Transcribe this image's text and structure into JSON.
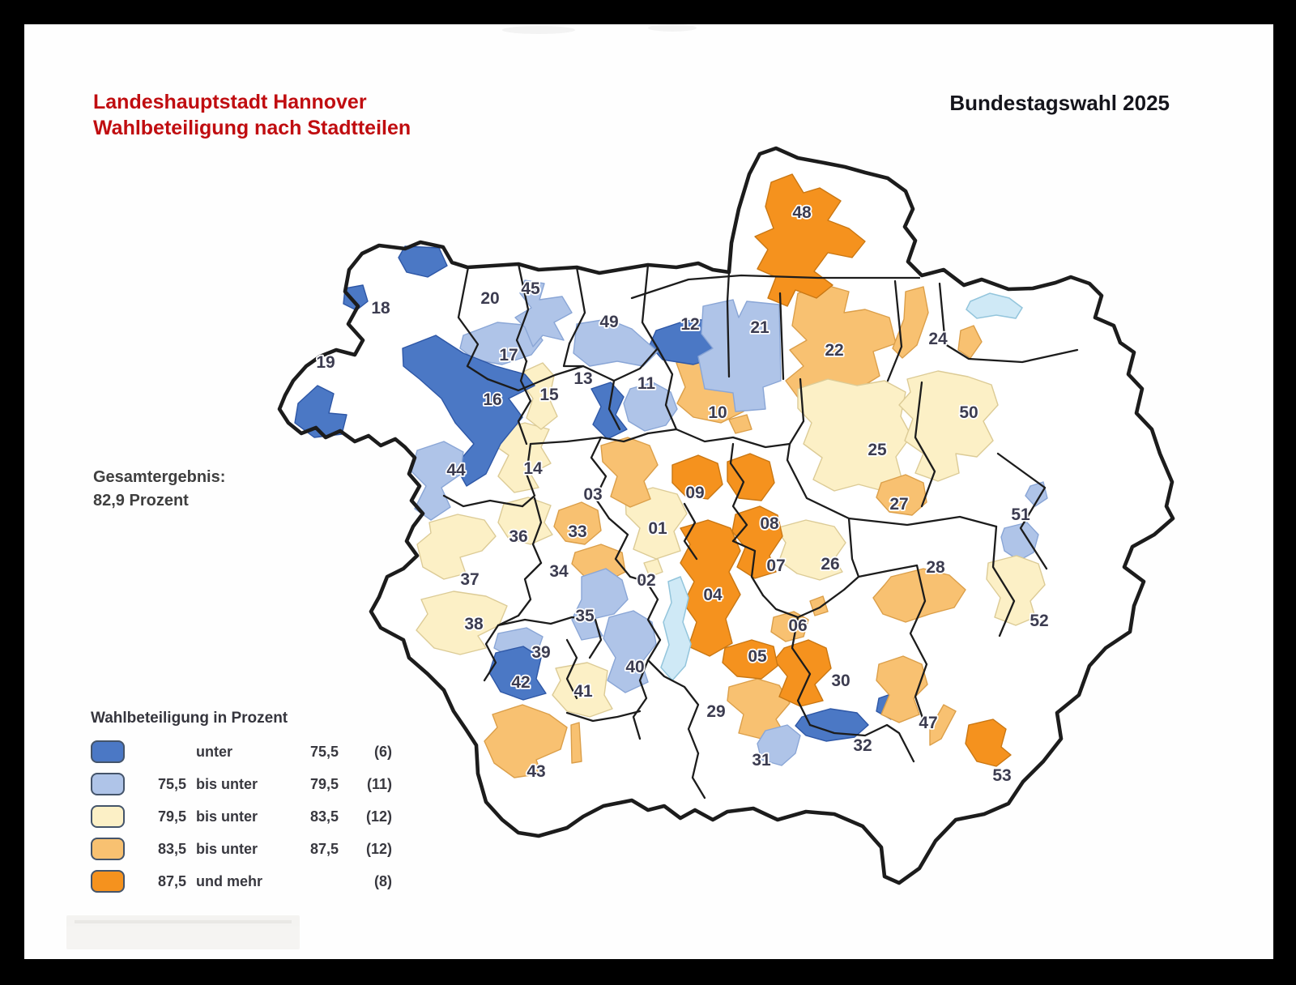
{
  "header": {
    "title_line1": "Landeshauptstadt Hannover",
    "title_line2": "Wahlbeteiligung nach Stadtteilen",
    "title_color": "#c00d10",
    "right_title": "Bundestagswahl 2025",
    "right_title_color": "#15151c"
  },
  "summary": {
    "label": "Gesamtergebnis:",
    "value": "82,9 Prozent"
  },
  "legend": {
    "title": "Wahlbeteiligung in Prozent",
    "classes": [
      {
        "id": "c1",
        "color": "#4b78c5",
        "from": "",
        "mid": "unter",
        "to": "75,5",
        "count": "(6)"
      },
      {
        "id": "c2",
        "color": "#afc4e8",
        "from": "75,5",
        "mid": "bis unter",
        "to": "79,5",
        "count": "(11)"
      },
      {
        "id": "c3",
        "color": "#fcf0c6",
        "from": "79,5",
        "mid": "bis unter",
        "to": "83,5",
        "count": "(12)"
      },
      {
        "id": "c4",
        "color": "#f8c171",
        "from": "83,5",
        "mid": "bis unter",
        "to": "87,5",
        "count": "(12)"
      },
      {
        "id": "c5",
        "color": "#f5921e",
        "from": "87,5",
        "mid": "und mehr",
        "to": "",
        "count": "(8)"
      }
    ]
  },
  "map": {
    "water_color": "#cfe9f6",
    "water_border": "#93c5dc",
    "boundary_color": "#1c1c1c",
    "label_color": "#3c3c50",
    "districts": [
      {
        "no": "01",
        "class": "c3"
      },
      {
        "no": "02",
        "class": "c3"
      },
      {
        "no": "03",
        "class": "c4"
      },
      {
        "no": "04",
        "class": "c5"
      },
      {
        "no": "05",
        "class": "c5"
      },
      {
        "no": "06",
        "class": "c4"
      },
      {
        "no": "07",
        "class": "c5"
      },
      {
        "no": "08",
        "class": "c5"
      },
      {
        "no": "09",
        "class": "c5"
      },
      {
        "no": "10",
        "class": "c4"
      },
      {
        "no": "11",
        "class": "c2"
      },
      {
        "no": "12",
        "class": "c1"
      },
      {
        "no": "13",
        "class": "c1"
      },
      {
        "no": "14",
        "class": "c3"
      },
      {
        "no": "15",
        "class": "c3"
      },
      {
        "no": "16",
        "class": "c2"
      },
      {
        "no": "17",
        "class": "c2"
      },
      {
        "no": "18",
        "class": "c1"
      },
      {
        "no": "19",
        "class": "c1"
      },
      {
        "no": "20",
        "class": "none"
      },
      {
        "no": "21",
        "class": "c2"
      },
      {
        "no": "22",
        "class": "c4"
      },
      {
        "no": "24",
        "class": "c4"
      },
      {
        "no": "25",
        "class": "c3"
      },
      {
        "no": "26",
        "class": "c3"
      },
      {
        "no": "27",
        "class": "c4"
      },
      {
        "no": "28",
        "class": "c4"
      },
      {
        "no": "29",
        "class": "c4"
      },
      {
        "no": "30",
        "class": "c5"
      },
      {
        "no": "31",
        "class": "c2"
      },
      {
        "no": "32",
        "class": "c1"
      },
      {
        "no": "33",
        "class": "c4"
      },
      {
        "no": "34",
        "class": "c4"
      },
      {
        "no": "35",
        "class": "c2"
      },
      {
        "no": "36",
        "class": "c3"
      },
      {
        "no": "37",
        "class": "c3"
      },
      {
        "no": "38",
        "class": "c3"
      },
      {
        "no": "39",
        "class": "c2"
      },
      {
        "no": "40",
        "class": "c2"
      },
      {
        "no": "41",
        "class": "c3"
      },
      {
        "no": "42",
        "class": "c1"
      },
      {
        "no": "43",
        "class": "c4"
      },
      {
        "no": "44",
        "class": "c2"
      },
      {
        "no": "45",
        "class": "c2"
      },
      {
        "no": "47",
        "class": "c4"
      },
      {
        "no": "48",
        "class": "c5"
      },
      {
        "no": "49",
        "class": "none"
      },
      {
        "no": "50",
        "class": "c3"
      },
      {
        "no": "51",
        "class": "c2"
      },
      {
        "no": "52",
        "class": "c3"
      },
      {
        "no": "53",
        "class": "c5"
      }
    ]
  }
}
